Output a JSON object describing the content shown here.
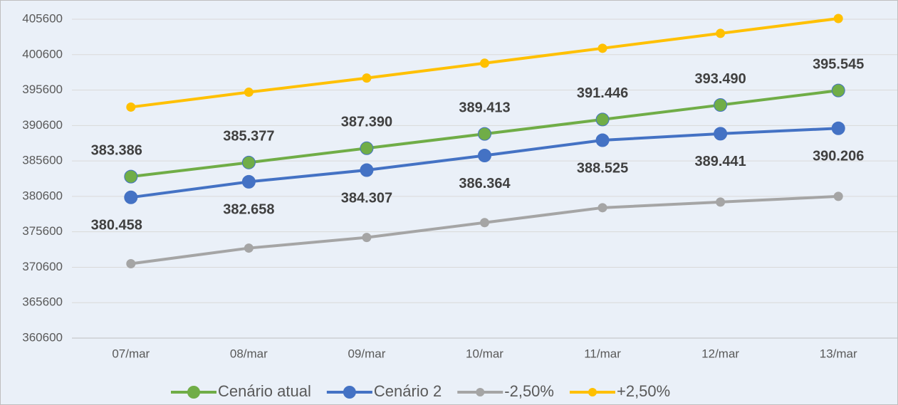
{
  "chart_data": {
    "type": "line",
    "categories": [
      "07/mar",
      "08/mar",
      "09/mar",
      "10/mar",
      "11/mar",
      "12/mar",
      "13/mar"
    ],
    "series": [
      {
        "name": "Cenário atual",
        "color": "#70ad47",
        "values": [
          383386,
          385377,
          387390,
          389413,
          391446,
          393490,
          395545
        ],
        "value_labels": [
          "383.386",
          "385.377",
          "387.390",
          "389.413",
          "391.446",
          "393.490",
          "395.545"
        ]
      },
      {
        "name": "Cenário 2",
        "color": "#4472c4",
        "values": [
          380458,
          382658,
          384307,
          386364,
          388525,
          389441,
          390206
        ],
        "value_labels": [
          "380.458",
          "382.658",
          "384.307",
          "386.364",
          "388.525",
          "389.441",
          "390.206"
        ]
      },
      {
        "name": "-2,50%",
        "color": "#a5a5a5",
        "values": [
          371100,
          373300,
          374800,
          376900,
          379000,
          379800,
          380600
        ]
      },
      {
        "name": "+2,50%",
        "color": "#ffc000",
        "values": [
          393200,
          395300,
          397300,
          399400,
          401500,
          403600,
          405700
        ]
      }
    ],
    "ylim": [
      360600,
      405600
    ],
    "yticks": [
      360600,
      365600,
      370600,
      375600,
      380600,
      385600,
      390600,
      395600,
      400600,
      405600
    ],
    "grid": true,
    "legend": "bottom"
  }
}
